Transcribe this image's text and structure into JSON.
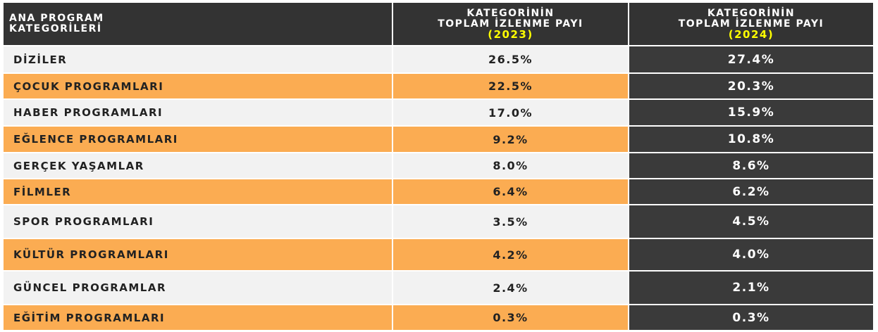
{
  "table": {
    "header": [
      [
        "ANA PROGRAM",
        "KATEGORİLERİ"
      ],
      [
        "KATEGORİNİN",
        "TOPLAM  İZLENME PAYI",
        "(2023)"
      ],
      [
        "KATEGORİNİN",
        "TOPLAM  İZLENME PAYI",
        "(2024)"
      ]
    ],
    "rows": [
      [
        "DİZİLER",
        "26.5%",
        "27.4%"
      ],
      [
        "ÇOCUK PROGRAMLARI",
        "22.5%",
        "20.3%"
      ],
      [
        "HABER PROGRAMLARI",
        "17.0%",
        "15.9%"
      ],
      [
        "EĞLENCE PROGRAMLARI",
        "9.2%",
        "10.8%"
      ],
      [
        "GERÇEK YAŞAMLAR",
        "8.0%",
        "8.6%"
      ],
      [
        "FİLMLER",
        "6.4%",
        "6.2%"
      ],
      [
        "SPOR PROGRAMLARI",
        "3.5%",
        "4.5%"
      ],
      [
        "KÜLTÜR PROGRAMLARI",
        "4.2%",
        "4.0%"
      ],
      [
        "GÜNCEL PROGRAMLAR",
        "2.4%",
        "2.1%"
      ],
      [
        "EĞİTİM PROGRAMLARI",
        "0.3%",
        "0.3%"
      ]
    ]
  }
}
